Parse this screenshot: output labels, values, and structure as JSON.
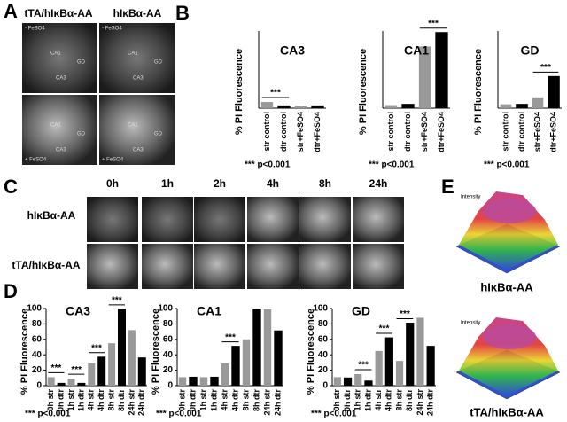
{
  "panel_letters": [
    "A",
    "B",
    "C",
    "D",
    "E"
  ],
  "panel_a": {
    "column_labels": [
      "tTA/hIκBα-AA",
      "hIκBα-AA"
    ],
    "images": [
      {
        "condition": "- FeSO4",
        "regions": [
          "CA1",
          "GD",
          "CA3"
        ]
      },
      {
        "condition": "- FeSO4",
        "regions": [
          "CA1",
          "GD",
          "CA3"
        ]
      },
      {
        "condition": "+ FeSO4",
        "regions": [
          "CA1",
          "GD",
          "CA3"
        ]
      },
      {
        "condition": "+ FeSO4",
        "regions": [
          "CA1",
          "GD",
          "CA3"
        ]
      }
    ]
  },
  "panel_c": {
    "time_labels": [
      "0h",
      "1h",
      "2h",
      "4h",
      "8h",
      "24h"
    ],
    "row_labels": [
      "hIκBα-AA",
      "tTA/hIκBα-AA"
    ]
  },
  "panel_e": {
    "axis_labels": [
      "Intensity",
      "Intensity"
    ],
    "labels": [
      "hIκBα-AA",
      "tTA/hIκBα-AA"
    ]
  },
  "chart_data": [
    {
      "type": "bar",
      "title": "CA3",
      "y_label": "% PI Fluorescence",
      "categories": [
        "str control",
        "dtr control",
        "str+FeSO4",
        "dtr+FeSO4"
      ],
      "values": [
        8,
        3,
        3,
        3
      ],
      "colors": [
        "#999999",
        "#000000",
        "#999999",
        "#000000"
      ],
      "ylim": [
        0,
        100
      ],
      "annotations": [
        "***"
      ],
      "note": "*** p<0.001"
    },
    {
      "type": "bar",
      "title": "CA1",
      "y_label": "% PI Fluorescence",
      "categories": [
        "str control",
        "dtr control",
        "str+FeSO4",
        "dtr+FeSO4"
      ],
      "values": [
        4,
        5,
        80,
        98
      ],
      "colors": [
        "#999999",
        "#000000",
        "#999999",
        "#000000"
      ],
      "ylim": [
        0,
        100
      ],
      "annotations": [
        "***"
      ],
      "note": "*** p<0.001"
    },
    {
      "type": "bar",
      "title": "GD",
      "y_label": "% PI Fluorescence",
      "categories": [
        "str control",
        "dtr control",
        "str+FeSO4",
        "dtr+FeSO4"
      ],
      "values": [
        5,
        5,
        14,
        41
      ],
      "colors": [
        "#999999",
        "#000000",
        "#999999",
        "#000000"
      ],
      "ylim": [
        0,
        100
      ],
      "annotations": [
        "***"
      ],
      "note": "*** p<0.001"
    },
    {
      "type": "bar",
      "title": "CA3",
      "y_label": "% PI Fluorescence",
      "categories": [
        "0h str",
        "0h dtr",
        "1h str",
        "1h dtr",
        "4h str",
        "4h dtr",
        "8h str",
        "8h dtr",
        "24h str",
        "24h dtr"
      ],
      "values": [
        11,
        3,
        9,
        3,
        29,
        37,
        55,
        99,
        72,
        36
      ],
      "colors": [
        "#999999",
        "#000000",
        "#999999",
        "#000000",
        "#999999",
        "#000000",
        "#999999",
        "#000000",
        "#999999",
        "#000000"
      ],
      "ylim": [
        0,
        100
      ],
      "yticks": [
        0,
        20,
        40,
        60,
        80,
        100
      ],
      "annotations": [
        "***",
        "***",
        "***",
        "***"
      ],
      "note": "*** p<0.001"
    },
    {
      "type": "bar",
      "title": "CA1",
      "y_label": "% PI Fluorescence",
      "categories": [
        "0h str",
        "0h dtr",
        "1h str",
        "1h dtr",
        "4h str",
        "4h dtr",
        "8h str",
        "8h dtr",
        "24h str",
        "24h dtr"
      ],
      "values": [
        11,
        11,
        11,
        11,
        29,
        51,
        60,
        99,
        99,
        71
      ],
      "colors": [
        "#999999",
        "#000000",
        "#999999",
        "#000000",
        "#999999",
        "#000000",
        "#999999",
        "#000000",
        "#999999",
        "#000000"
      ],
      "ylim": [
        0,
        100
      ],
      "yticks": [
        0,
        20,
        40,
        60,
        80,
        100
      ],
      "annotations": [
        "***"
      ],
      "note": "*** p<0.001"
    },
    {
      "type": "bar",
      "title": "GD",
      "y_label": "% PI Fluorescence",
      "categories": [
        "0h str",
        "0h dtr",
        "1h str",
        "1h dtr",
        "4h str",
        "4h dtr",
        "8h str",
        "8h dtr",
        "24h str",
        "24h dtr"
      ],
      "values": [
        11,
        10,
        15,
        6,
        45,
        62,
        32,
        81,
        88,
        51
      ],
      "colors": [
        "#999999",
        "#000000",
        "#999999",
        "#000000",
        "#999999",
        "#000000",
        "#999999",
        "#000000",
        "#999999",
        "#000000"
      ],
      "ylim": [
        0,
        100
      ],
      "yticks": [
        0,
        20,
        40,
        60,
        80,
        100
      ],
      "annotations": [
        "***",
        "***",
        "***"
      ],
      "note": "*** p<0.001"
    }
  ]
}
